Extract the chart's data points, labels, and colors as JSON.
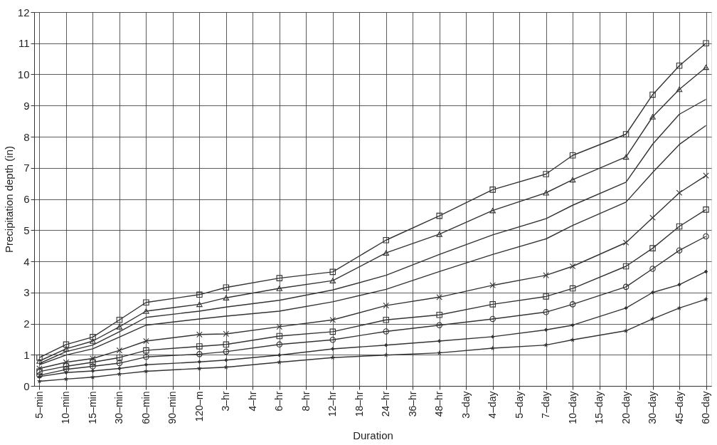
{
  "chart_data": {
    "type": "line",
    "xlabel": "Duration",
    "ylabel": "Precipitation depth (in)",
    "categories": [
      "5–min",
      "10–min",
      "15–min",
      "30–min",
      "60–min",
      "90–min",
      "120–m",
      "3–hr",
      "4–hr",
      "6–hr",
      "8–hr",
      "12–hr",
      "18–hr",
      "24–hr",
      "36–hr",
      "48–hr",
      "3–day",
      "4–day",
      "5–day",
      "7–day",
      "10–day",
      "15–day",
      "20–day",
      "30–day",
      "45–day",
      "60–day"
    ],
    "ylim": [
      0,
      12
    ],
    "yticks": [
      0,
      1,
      2,
      3,
      4,
      5,
      6,
      7,
      8,
      9,
      10,
      11,
      12
    ],
    "grid": true,
    "line_style": "solid",
    "series": [
      {
        "color": "#333333",
        "marker": "square",
        "values": [
          0.91,
          1.33,
          1.57,
          2.12,
          2.68,
          null,
          2.93,
          3.16,
          null,
          3.46,
          null,
          3.66,
          null,
          4.68,
          null,
          5.46,
          null,
          6.3,
          null,
          6.8,
          7.4,
          null,
          8.08,
          9.35,
          10.28,
          11.0
        ]
      },
      {
        "color": "#333333",
        "marker": "triangle",
        "values": [
          0.8,
          1.19,
          1.44,
          1.9,
          2.4,
          null,
          2.62,
          2.83,
          null,
          3.13,
          null,
          3.38,
          null,
          4.27,
          null,
          4.87,
          null,
          5.63,
          null,
          6.2,
          6.62,
          null,
          7.35,
          8.64,
          9.52,
          10.23
        ]
      },
      {
        "color": "#333333",
        "marker": "none",
        "values": [
          0.72,
          1.1,
          1.31,
          1.74,
          2.2,
          null,
          2.4,
          2.53,
          null,
          2.75,
          null,
          3.08,
          null,
          3.55,
          null,
          4.22,
          null,
          4.85,
          null,
          5.37,
          5.8,
          null,
          6.54,
          7.76,
          8.72,
          9.2
        ]
      },
      {
        "color": "#333333",
        "marker": "none",
        "values": [
          0.68,
          0.99,
          1.19,
          1.57,
          1.95,
          null,
          2.15,
          2.24,
          null,
          2.4,
          null,
          2.7,
          null,
          3.1,
          null,
          3.67,
          null,
          4.22,
          null,
          4.72,
          5.15,
          null,
          5.9,
          6.85,
          7.75,
          8.36
        ]
      },
      {
        "color": "#333333",
        "marker": "cross",
        "values": [
          0.56,
          0.76,
          0.88,
          1.14,
          1.44,
          null,
          1.65,
          1.67,
          null,
          1.9,
          null,
          2.12,
          null,
          2.58,
          null,
          2.85,
          null,
          3.23,
          null,
          3.55,
          3.84,
          null,
          4.6,
          5.4,
          6.2,
          6.75
        ]
      },
      {
        "color": "#333333",
        "marker": "square",
        "values": [
          0.46,
          0.63,
          0.76,
          0.91,
          1.14,
          null,
          1.27,
          1.33,
          null,
          1.6,
          null,
          1.74,
          null,
          2.12,
          null,
          2.28,
          null,
          2.62,
          null,
          2.87,
          3.13,
          null,
          3.84,
          4.42,
          5.12,
          5.66
        ]
      },
      {
        "color": "#333333",
        "marker": "circle",
        "values": [
          0.34,
          0.53,
          0.63,
          0.73,
          0.93,
          null,
          1.02,
          1.1,
          null,
          1.33,
          null,
          1.48,
          null,
          1.75,
          null,
          1.95,
          null,
          2.15,
          null,
          2.37,
          2.62,
          null,
          3.18,
          3.76,
          4.35,
          4.8
        ]
      },
      {
        "color": "#333333",
        "marker": "diamond",
        "values": [
          0.3,
          0.43,
          0.48,
          0.56,
          0.68,
          null,
          0.77,
          0.83,
          null,
          0.99,
          null,
          1.19,
          null,
          1.31,
          null,
          1.44,
          null,
          1.58,
          null,
          1.8,
          1.95,
          null,
          2.5,
          3.0,
          3.25,
          3.67
        ]
      },
      {
        "color": "#333333",
        "marker": "star",
        "values": [
          0.15,
          0.22,
          0.28,
          0.38,
          0.47,
          null,
          0.56,
          0.6,
          null,
          0.76,
          null,
          0.91,
          null,
          0.99,
          null,
          1.06,
          null,
          1.21,
          null,
          1.31,
          1.48,
          null,
          1.77,
          2.15,
          2.5,
          2.78
        ]
      }
    ]
  }
}
